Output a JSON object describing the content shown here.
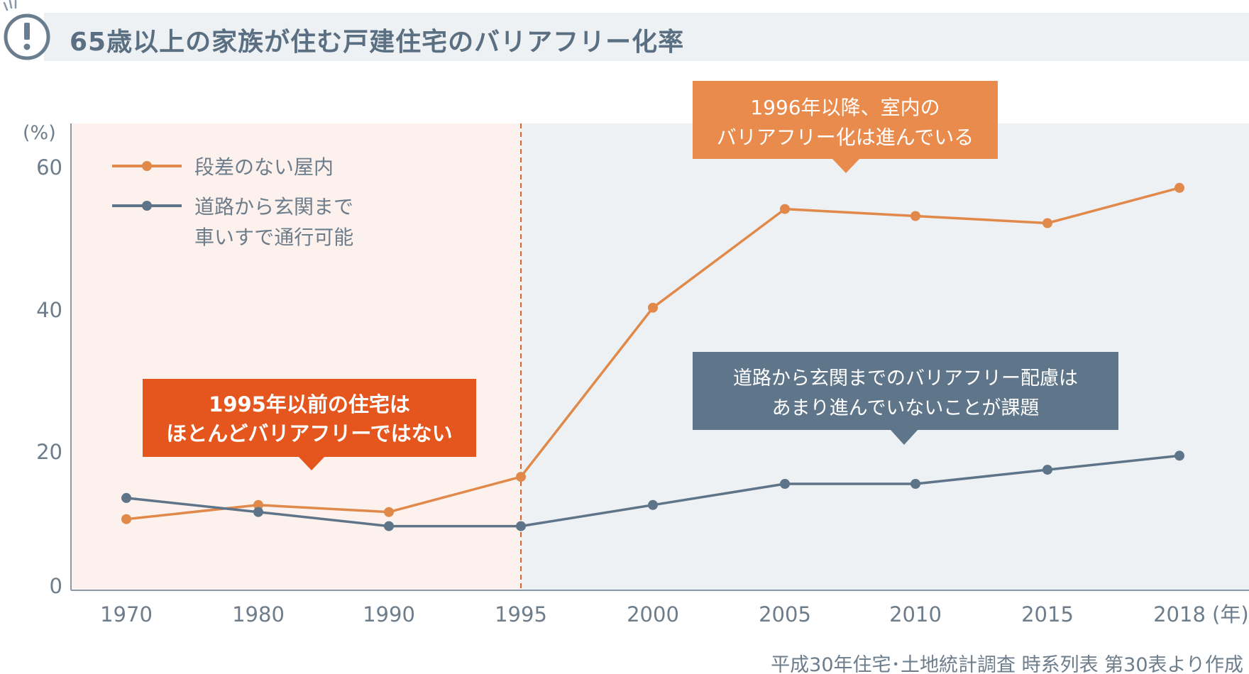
{
  "title": "65歳以上の家族が住む戸建住宅のバリアフリー化率",
  "source_note": "平成30年住宅･土地統計調査 時系列表 第30表より作成",
  "colors": {
    "orange": "#e0894a",
    "slate": "#5e7489",
    "orange_callout": "#e98b4c",
    "red_callout": "#e4561d",
    "slate_callout": "#5f7589",
    "pre1995_bg": "#fcf1ec",
    "post1995_bg": "#eef1f4",
    "axis_text": "#6d7d8b"
  },
  "chart_data": {
    "type": "line",
    "x_unit": "(年)",
    "y_unit": "(%)",
    "x": [
      1970,
      1980,
      1990,
      1995,
      2000,
      2005,
      2010,
      2015,
      2018
    ],
    "x_tick_labels": [
      "1970",
      "1980",
      "1990",
      "1995",
      "2000",
      "2005",
      "2010",
      "2015",
      "2018"
    ],
    "ylim": [
      0,
      60
    ],
    "y_ticks": [
      0,
      20,
      40,
      60
    ],
    "grid": false,
    "legend_position": "top-left",
    "series": [
      {
        "name": "段差のない屋内",
        "color": "#e0894a",
        "values": [
          10,
          12,
          11,
          16,
          40,
          54,
          53,
          52,
          57
        ]
      },
      {
        "name": "道路から玄関まで車いすで通行可能",
        "legend_lines": [
          "道路から玄関まで",
          "車いすで通行可能"
        ],
        "color": "#5e7489",
        "values": [
          13,
          11,
          9,
          9,
          12,
          15,
          15,
          17,
          19
        ]
      }
    ],
    "divider_year": 1995,
    "annotations": [
      {
        "lines": [
          "1995年以前の住宅は",
          "ほとんどバリアフリーではない"
        ]
      },
      {
        "lines": [
          "1996年以降、室内の",
          "バリアフリー化は進んでいる"
        ]
      },
      {
        "lines": [
          "道路から玄関までのバリアフリー配慮は",
          "あまり進んでいないことが課題"
        ]
      }
    ]
  }
}
